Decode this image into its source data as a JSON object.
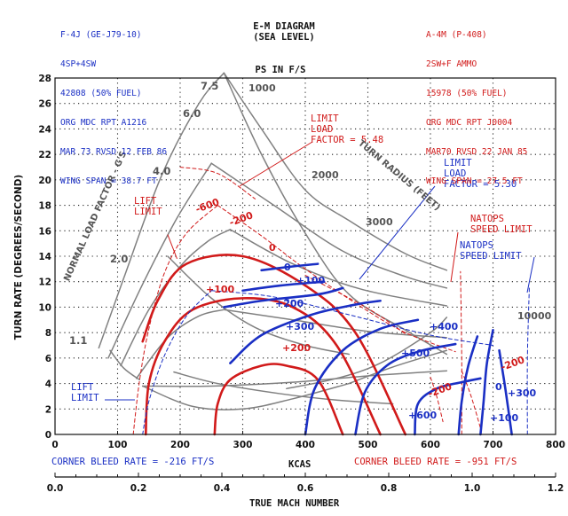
{
  "header": {
    "left": [
      "F-4J (GE-J79-10)",
      "4SP+4SW",
      "42808 (50% FUEL)",
      "ORG MDC RPT A1216",
      "MAR 73 RVSD 12 FEB 86",
      "WING SPAN = 38.7 FT"
    ],
    "right": [
      "A-4M (P-408)",
      "2SW+F AMMO",
      "15978 (50% FUEL)",
      "ORG MDC RPT J0004",
      "MAR70 RVSD 22 JAN 85",
      "WING SPAN = 27.5 FT"
    ]
  },
  "chart_data": {
    "type": "line",
    "title": "E-M DIAGRAM",
    "subtitle": "(SEA LEVEL)",
    "ps_label": "PS IN F/S",
    "xlabel": "KCAS",
    "ylabel": "TURN RATE (DEGREES/SECOND)",
    "x2label": "TRUE MACH NUMBER",
    "xlim": [
      0,
      800
    ],
    "ylim": [
      0,
      28
    ],
    "x_ticks": [
      0,
      100,
      200,
      300,
      400,
      500,
      600,
      700,
      800
    ],
    "y_ticks": [
      0,
      2,
      4,
      6,
      8,
      10,
      12,
      14,
      16,
      18,
      20,
      22,
      24,
      26,
      28
    ],
    "mach_ticks": [
      "0.0",
      "0.2",
      "0.4",
      "0.6",
      "0.8",
      "1.0",
      "1.2"
    ],
    "colors": {
      "f4j": "#1a2fc4",
      "a4m": "#d11a1a",
      "grid": "#808080"
    },
    "series": [
      {
        "name": "F-4J (GE-J79-10)",
        "ps_contours": [
          {
            "label": "0",
            "points": [
              [
                330,
                12.9
              ],
              [
                380,
                13.2
              ],
              [
                420,
                13.4
              ]
            ]
          },
          {
            "label": "+100",
            "points": [
              [
                300,
                11.3
              ],
              [
                360,
                11.7
              ],
              [
                430,
                12.0
              ]
            ]
          },
          {
            "label": "+200",
            "points": [
              [
                270,
                10.0
              ],
              [
                330,
                10.5
              ],
              [
                420,
                11.0
              ],
              [
                460,
                11.5
              ]
            ]
          },
          {
            "label": "+300",
            "points": [
              [
                280,
                5.6
              ],
              [
                330,
                7.8
              ],
              [
                410,
                9.4
              ],
              [
                480,
                10.2
              ],
              [
                520,
                10.5
              ]
            ]
          },
          {
            "label": "+400",
            "points": [
              [
                400,
                0
              ],
              [
                415,
                3.6
              ],
              [
                460,
                6.6
              ],
              [
                520,
                8.3
              ],
              [
                580,
                9.0
              ]
            ]
          },
          {
            "label": "+500",
            "points": [
              [
                480,
                0
              ],
              [
                495,
                3.3
              ],
              [
                530,
                5.4
              ],
              [
                580,
                6.5
              ],
              [
                640,
                7.1
              ]
            ]
          },
          {
            "label": "+600",
            "points": [
              [
                575,
                0
              ],
              [
                580,
                2.4
              ],
              [
                610,
                3.6
              ],
              [
                650,
                4.1
              ],
              [
                680,
                4.4
              ]
            ]
          },
          {
            "label": "+300",
            "points": [
              [
                645,
                0
              ],
              [
                650,
                2.6
              ],
              [
                660,
                5.3
              ],
              [
                675,
                7.7
              ]
            ]
          },
          {
            "label": "+100",
            "points": [
              [
                680,
                0
              ],
              [
                685,
                2.6
              ],
              [
                690,
                5.5
              ],
              [
                700,
                8.2
              ]
            ]
          },
          {
            "label": "0",
            "points": [
              [
                730,
                0
              ],
              [
                720,
                3.5
              ],
              [
                710,
                6.6
              ]
            ]
          }
        ]
      },
      {
        "name": "A-4M (P-408)",
        "ps_contours": [
          {
            "label": "0",
            "points": [
              [
                140,
                7.3
              ],
              [
                165,
                10.6
              ],
              [
                210,
                13.4
              ],
              [
                300,
                14.0
              ],
              [
                400,
                11.7
              ],
              [
                480,
                8.0
              ],
              [
                560,
                0
              ]
            ]
          },
          {
            "label": "+100",
            "points": [
              [
                145,
                0
              ],
              [
                150,
                4.0
              ],
              [
                175,
                7.3
              ],
              [
                220,
                9.8
              ],
              [
                300,
                10.7
              ],
              [
                380,
                10.0
              ],
              [
                450,
                7.0
              ],
              [
                520,
                0
              ]
            ]
          },
          {
            "label": "+200",
            "points": [
              [
                255,
                0
              ],
              [
                260,
                2.4
              ],
              [
                280,
                4.3
              ],
              [
                330,
                5.4
              ],
              [
                370,
                5.4
              ],
              [
                420,
                4.3
              ],
              [
                460,
                0
              ]
            ]
          },
          {
            "label": "-200",
            "points": [
              [
                600,
                4.5
              ],
              [
                610,
                3.0
              ],
              [
                620,
                1.0
              ]
            ]
          },
          {
            "label": "-600",
            "points": [
              [
                200,
                21.0
              ],
              [
                260,
                20.5
              ],
              [
                320,
                18.5
              ]
            ]
          },
          {
            "label": "-200",
            "points": [
              [
                400,
                12.5
              ],
              [
                500,
                9.9
              ],
              [
                560,
                7.9
              ]
            ]
          },
          {
            "label": "-200",
            "points": [
              [
                650,
                5.0
              ],
              [
                665,
                3.0
              ],
              [
                680,
                0.5
              ]
            ]
          }
        ]
      }
    ],
    "load_factor_labels": [
      "7.5",
      "6.0",
      "4.0",
      "2.0",
      "1.1"
    ],
    "turn_radius_labels": [
      "1000",
      "2000",
      "3000",
      "10000"
    ],
    "annotations": [
      {
        "text": "LIMIT LOAD FACTOR = 5.48",
        "color": "red"
      },
      {
        "text": "LIMIT LOAD FACTOR = 5.30",
        "color": "blue"
      },
      {
        "text": "NATOPS SPEED LIMIT",
        "color": "red"
      },
      {
        "text": "NATOPS SPEED LIMIT",
        "color": "blue"
      },
      {
        "text": "LIFT LIMIT",
        "color": "red"
      },
      {
        "text": "LIFT LIMIT",
        "color": "blue"
      },
      {
        "text": "NORMAL LOAD FACTOR - G'S",
        "color": "gray"
      },
      {
        "text": "TURN RADIUS (FEET)",
        "color": "gray"
      }
    ],
    "corner_bleed": [
      {
        "text": "CORNER BLEED RATE = -216 FT/S",
        "color": "blue"
      },
      {
        "text": "CORNER BLEED RATE = -951 FT/S",
        "color": "red"
      }
    ],
    "grid": true
  }
}
